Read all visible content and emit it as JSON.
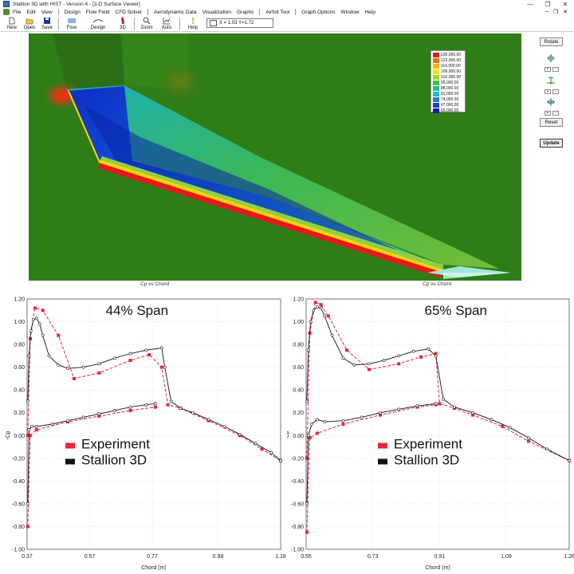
{
  "window": {
    "title": "Stallion 3D with HIST - Version 4 - [3-D Surface Viewer]",
    "controls": [
      "—",
      "❐",
      "✕"
    ]
  },
  "menu": {
    "items": [
      "File",
      "Edit",
      "View",
      "Design",
      "Flow Field",
      "CFD Solver",
      "Aerodynamic Data",
      "Visualization",
      "Graphs",
      "Airfoil Tool",
      "Graph Options",
      "Window",
      "Help"
    ],
    "mdi_controls": [
      "–",
      "❐",
      "✕"
    ]
  },
  "toolbar": {
    "tools": [
      {
        "label": "New",
        "icon": "new-document-icon"
      },
      {
        "label": "Open",
        "icon": "open-folder-icon"
      },
      {
        "label": "Save",
        "icon": "save-disk-icon"
      },
      {
        "label": "Flow",
        "icon": "flow-icon"
      },
      {
        "label": "Design",
        "icon": "design-icon"
      },
      {
        "label": "3D",
        "icon": "3d-icon"
      },
      {
        "label": "Zoom",
        "icon": "zoom-icon"
      },
      {
        "label": "Auto",
        "icon": "auto-scale-icon"
      },
      {
        "label": "Help",
        "icon": "help-icon"
      }
    ],
    "coords": "X = 1.03  Y=1.72"
  },
  "side_panel": {
    "rotate": "Rotate",
    "reset": "Reset",
    "update": "Update",
    "plus": "+",
    "minus": "-"
  },
  "legend": {
    "values": [
      "130,000.00",
      "123,000.00",
      "116,000.00",
      "109,000.00",
      "102,000.00",
      "95,000.00",
      "88,000.00",
      "81,000.00",
      "74,000.00",
      "67,000.00",
      "60,000.00"
    ],
    "colors": [
      "#e31a1c",
      "#ff6a00",
      "#ffb300",
      "#e6e600",
      "#9fd62a",
      "#3ec43e",
      "#20c08a",
      "#1cb8d6",
      "#1e7fe0",
      "#1b3fd0",
      "#1a1aa8"
    ]
  },
  "viewer_captions": [
    "Cp vs Chord",
    "Cp vs Chord"
  ],
  "charts": [
    {
      "chart_data": {
        "type": "line",
        "annotation": "44% Span",
        "xlabel": "Chord (m)",
        "ylabel": "-Cp",
        "xlim": [
          0.37,
          1.18
        ],
        "ylim": [
          -1.0,
          1.2
        ],
        "xticks": [
          "0.37",
          "0.57",
          "0.77",
          "0.98",
          "1.18"
        ],
        "yticks": [
          "1.20",
          "1.00",
          "0.80",
          "0.60",
          "0.40",
          "0.20",
          "0.00",
          "-0.20",
          "-0.40",
          "-0.60",
          "-0.80",
          "-1.00"
        ],
        "legend": [
          "Experiment",
          "Stallion 3D"
        ],
        "series": [
          {
            "name": "Experiment",
            "color": "#e8253a",
            "upper": {
              "x": [
                0.372,
                0.38,
                0.395,
                0.42,
                0.47,
                0.52,
                0.6,
                0.7,
                0.76,
                0.8,
                0.82,
                0.86,
                0.95,
                1.05,
                1.12,
                1.18
              ],
              "y": [
                0.0,
                0.85,
                1.12,
                1.1,
                0.88,
                0.5,
                0.55,
                0.66,
                0.71,
                0.6,
                0.27,
                0.24,
                0.13,
                0.0,
                -0.12,
                -0.22
              ]
            },
            "lower": {
              "x": [
                0.372,
                0.38,
                0.4,
                0.5,
                0.6,
                0.7,
                0.78
              ],
              "y": [
                -0.8,
                0.0,
                0.05,
                0.12,
                0.17,
                0.22,
                0.25
              ]
            }
          },
          {
            "name": "Stallion 3D",
            "color": "#111111",
            "upper": {
              "x": [
                0.372,
                0.376,
                0.382,
                0.39,
                0.4,
                0.41,
                0.42,
                0.44,
                0.47,
                0.5,
                0.55,
                0.6,
                0.65,
                0.7,
                0.75,
                0.8,
                0.81,
                0.83,
                0.86,
                0.9,
                0.95,
                1.0,
                1.05,
                1.1,
                1.15,
                1.18
              ],
              "y": [
                0.3,
                0.7,
                0.92,
                1.02,
                1.03,
                0.98,
                0.88,
                0.7,
                0.62,
                0.59,
                0.6,
                0.63,
                0.68,
                0.72,
                0.75,
                0.77,
                0.6,
                0.3,
                0.24,
                0.2,
                0.14,
                0.08,
                0.01,
                -0.07,
                -0.15,
                -0.22
              ]
            },
            "lower": {
              "x": [
                0.372,
                0.376,
                0.385,
                0.4,
                0.45,
                0.5,
                0.55,
                0.6,
                0.65,
                0.7,
                0.75,
                0.78
              ],
              "y": [
                -0.6,
                0.05,
                0.08,
                0.08,
                0.1,
                0.13,
                0.16,
                0.19,
                0.22,
                0.25,
                0.27,
                0.28
              ]
            }
          }
        ]
      }
    },
    {
      "chart_data": {
        "type": "line",
        "annotation": "65% Span",
        "xlabel": "Chord (m)",
        "ylabel": "-Cp",
        "xlim": [
          0.55,
          1.26
        ],
        "ylim": [
          -1.0,
          1.2
        ],
        "xticks": [
          "0.55",
          "0.73",
          "0.91",
          "1.09",
          "1.26"
        ],
        "yticks": [
          "1.20",
          "1.00",
          "0.80",
          "0.60",
          "0.40",
          "0.20",
          "0.00",
          "-0.20",
          "-0.40",
          "-0.60",
          "-0.80",
          "-1.00"
        ],
        "legend": [
          "Experiment",
          "Stallion 3D"
        ],
        "series": [
          {
            "name": "Experiment",
            "color": "#e8253a",
            "upper": {
              "x": [
                0.552,
                0.56,
                0.575,
                0.59,
                0.61,
                0.66,
                0.72,
                0.8,
                0.86,
                0.9,
                0.91,
                0.95,
                1.0,
                1.08,
                1.15,
                1.26
              ],
              "y": [
                -0.2,
                0.9,
                1.17,
                1.15,
                1.05,
                0.75,
                0.58,
                0.63,
                0.69,
                0.72,
                0.28,
                0.24,
                0.18,
                0.08,
                -0.05,
                -0.22
              ]
            },
            "lower": {
              "x": [
                0.552,
                0.56,
                0.58,
                0.65,
                0.75,
                0.85,
                0.9
              ],
              "y": [
                -0.85,
                -0.02,
                0.02,
                0.1,
                0.18,
                0.25,
                0.27
              ]
            }
          },
          {
            "name": "Stallion 3D",
            "color": "#111111",
            "upper": {
              "x": [
                0.552,
                0.556,
                0.562,
                0.57,
                0.58,
                0.59,
                0.6,
                0.62,
                0.65,
                0.68,
                0.72,
                0.76,
                0.8,
                0.84,
                0.88,
                0.9,
                0.92,
                0.95,
                1.0,
                1.05,
                1.1,
                1.15,
                1.2,
                1.26
              ],
              "y": [
                0.3,
                0.75,
                1.0,
                1.1,
                1.13,
                1.12,
                1.05,
                0.88,
                0.68,
                0.62,
                0.63,
                0.66,
                0.7,
                0.74,
                0.76,
                0.7,
                0.32,
                0.25,
                0.2,
                0.14,
                0.07,
                -0.02,
                -0.12,
                -0.22
              ]
            },
            "lower": {
              "x": [
                0.552,
                0.556,
                0.565,
                0.58,
                0.6,
                0.65,
                0.7,
                0.75,
                0.8,
                0.85,
                0.9
              ],
              "y": [
                -0.6,
                0.0,
                0.1,
                0.14,
                0.12,
                0.13,
                0.16,
                0.2,
                0.23,
                0.26,
                0.28
              ]
            }
          }
        ]
      }
    }
  ]
}
